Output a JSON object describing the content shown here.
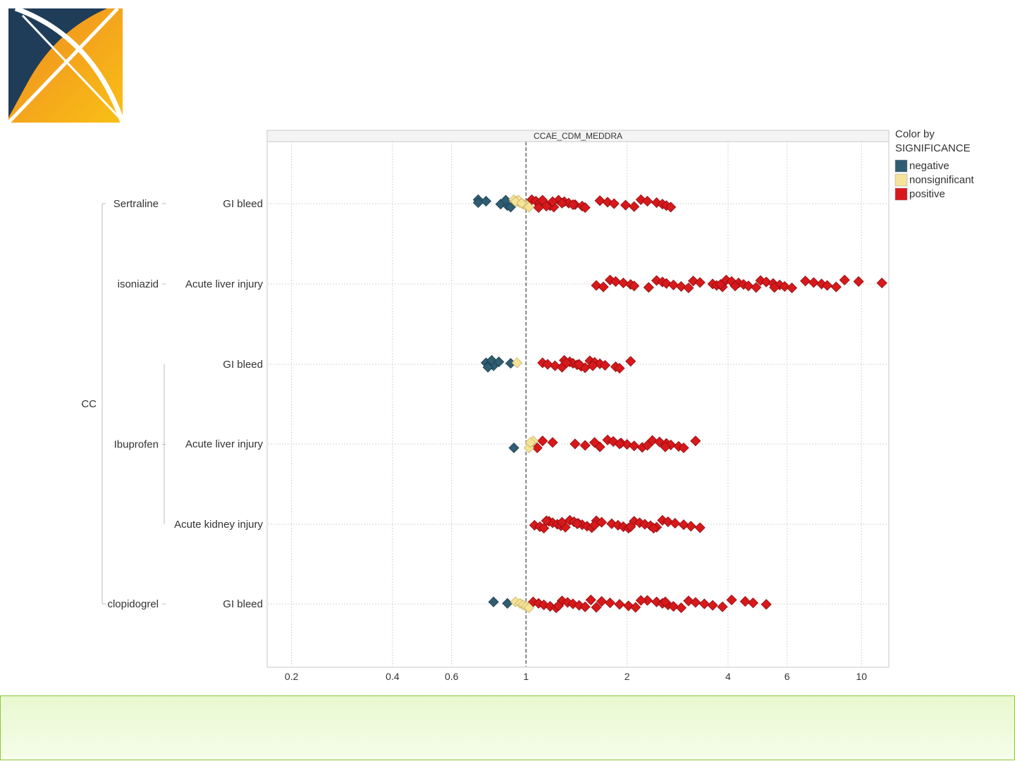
{
  "logo": {
    "name": "OHDSI logo",
    "colors": {
      "navy": "#1f3d58",
      "orange": "#f39325",
      "yellow": "#f7b818"
    }
  },
  "footer": {
    "color": "#e9f8d1",
    "border": "#8dc63f"
  },
  "chart_data": {
    "type": "scatter",
    "panel_title": "CCAE_CDM_MEDDRA",
    "x_scale": "log",
    "xlim": [
      0.17,
      12
    ],
    "x_ticks": [
      0.2,
      0.4,
      0.6,
      1,
      2,
      4,
      6,
      10
    ],
    "x_tick_labels": [
      "0.2",
      "0.4",
      "0.6",
      "1",
      "2",
      "4",
      "6",
      "10"
    ],
    "reference_line": 1,
    "grid": true,
    "legend": {
      "title_line1": "Color by",
      "title_line2": "SIGNIFICANCE",
      "placement": "right",
      "entries": [
        {
          "label": "negative",
          "color": "#2f5d72"
        },
        {
          "label": "nonsignificant",
          "color": "#f5e39a"
        },
        {
          "label": "positive",
          "color": "#d7191c"
        }
      ]
    },
    "hierarchy": {
      "root": "CC",
      "drugs": [
        {
          "name": "Sertraline",
          "rows": [
            0
          ]
        },
        {
          "name": "isoniazid",
          "rows": [
            1
          ]
        },
        {
          "name": "Ibuprofen",
          "rows": [
            2,
            3,
            4
          ]
        },
        {
          "name": "clopidogrel",
          "rows": [
            5
          ]
        }
      ]
    },
    "rows": [
      {
        "drug": "Sertraline",
        "outcome": "GI bleed",
        "negative": [
          0.72,
          0.76,
          0.72,
          0.84,
          0.88,
          0.9,
          0.87
        ],
        "nonsignificant": [
          0.92,
          0.94,
          0.96,
          0.98,
          1.0,
          1.02,
          0.95,
          0.93,
          0.97
        ],
        "positive": [
          1.04,
          1.07,
          1.1,
          1.14,
          1.18,
          1.21,
          1.25,
          1.3,
          1.34,
          1.4,
          1.47,
          1.5,
          1.66,
          1.75,
          1.83,
          1.98,
          2.1,
          2.2,
          2.3,
          2.45,
          2.55,
          2.62,
          2.7,
          1.12,
          1.2,
          1.28,
          1.38,
          1.15,
          1.09
        ]
      },
      {
        "drug": "isoniazid",
        "outcome": "Acute liver injury",
        "negative": [],
        "nonsignificant": [],
        "positive": [
          1.62,
          1.7,
          1.78,
          1.85,
          1.95,
          2.05,
          2.1,
          2.32,
          2.45,
          2.55,
          2.62,
          2.75,
          2.9,
          3.05,
          3.15,
          3.3,
          3.6,
          3.7,
          3.85,
          3.95,
          4.1,
          4.3,
          4.45,
          4.6,
          4.85,
          5.0,
          5.2,
          5.45,
          5.7,
          5.9,
          6.2,
          6.8,
          7.2,
          7.6,
          7.9,
          8.4,
          8.9,
          9.8,
          11.5,
          3.8,
          4.2,
          5.5
        ]
      },
      {
        "drug": "Ibuprofen",
        "outcome": "GI bleed",
        "negative": [
          0.76,
          0.78,
          0.8,
          0.77,
          0.79,
          0.83,
          0.9
        ],
        "nonsignificant": [
          0.94
        ],
        "positive": [
          1.12,
          1.16,
          1.22,
          1.28,
          1.3,
          1.35,
          1.38,
          1.42,
          1.46,
          1.5,
          1.55,
          1.6,
          1.66,
          1.72,
          1.85,
          1.9,
          2.05,
          1.32,
          1.44,
          1.58
        ]
      },
      {
        "drug": "Ibuprofen",
        "outcome": "Acute liver injury",
        "negative": [
          0.92
        ],
        "nonsignificant": [
          1.02,
          1.05,
          1.03
        ],
        "positive": [
          1.08,
          1.12,
          1.2,
          1.4,
          1.5,
          1.66,
          1.75,
          1.82,
          1.92,
          2.0,
          2.1,
          2.22,
          2.38,
          2.5,
          2.62,
          2.7,
          2.85,
          2.95,
          3.2,
          1.6,
          1.9,
          2.3,
          2.6
        ]
      },
      {
        "drug": "Ibuprofen",
        "outcome": "Acute kidney injury",
        "negative": [],
        "nonsignificant": [],
        "positive": [
          1.06,
          1.1,
          1.13,
          1.17,
          1.2,
          1.24,
          1.27,
          1.31,
          1.35,
          1.39,
          1.43,
          1.47,
          1.52,
          1.57,
          1.62,
          1.68,
          1.8,
          1.88,
          1.95,
          2.02,
          2.1,
          2.18,
          2.26,
          2.35,
          2.45,
          2.55,
          2.65,
          2.78,
          2.95,
          3.1,
          3.3,
          1.15,
          1.28,
          1.42,
          1.6,
          2.05,
          2.4
        ]
      },
      {
        "drug": "clopidogrel",
        "outcome": "GI bleed",
        "negative": [
          0.8,
          0.88
        ],
        "nonsignificant": [
          0.93,
          0.96,
          0.98,
          1.0,
          1.02
        ],
        "positive": [
          1.05,
          1.09,
          1.13,
          1.18,
          1.23,
          1.28,
          1.33,
          1.38,
          1.44,
          1.5,
          1.56,
          1.68,
          1.78,
          1.9,
          2.02,
          2.12,
          2.3,
          2.45,
          2.55,
          2.65,
          2.75,
          2.9,
          3.05,
          3.2,
          3.4,
          3.6,
          3.85,
          4.1,
          4.5,
          4.75,
          5.2,
          1.25,
          1.62,
          2.2,
          2.6
        ]
      }
    ]
  }
}
